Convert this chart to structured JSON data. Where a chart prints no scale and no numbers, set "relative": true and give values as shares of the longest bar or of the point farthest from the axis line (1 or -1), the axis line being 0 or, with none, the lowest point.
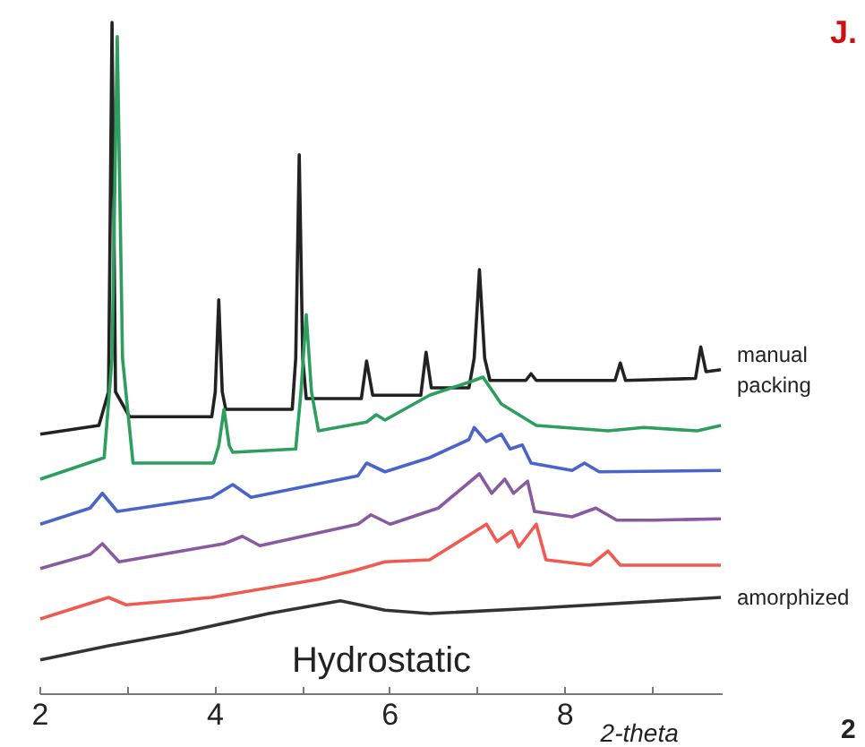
{
  "chart_data": {
    "type": "line",
    "title": "Hydrostatic",
    "xlabel": "2-theta",
    "relative": true,
    "xlim": [
      2,
      9.8
    ],
    "xticks": [
      2,
      {
        "value": 3,
        "label": null
      },
      4,
      {
        "value": 5,
        "label": null
      },
      6,
      {
        "value": 7,
        "label": null
      },
      8,
      {
        "value": 9,
        "label": null
      }
    ],
    "annotations": [
      "J.",
      "2"
    ],
    "grid": false,
    "marker": "none",
    "line_style": "solid",
    "series": [
      {
        "name": "manual packing",
        "color": "#222222",
        "x": [
          2,
          2.67,
          2.78,
          2.82,
          2.86,
          3.02,
          3.96,
          4.0,
          4.04,
          4.08,
          4.12,
          4.88,
          4.92,
          4.96,
          5.0,
          5.04,
          5.67,
          5.73,
          5.8,
          6.35,
          6.41,
          6.47,
          6.9,
          6.96,
          7.02,
          7.08,
          7.14,
          7.55,
          7.61,
          7.67,
          8.57,
          8.63,
          8.69,
          9.49,
          9.55,
          9.61,
          9.78
        ],
        "values": [
          0.387,
          0.4,
          0.45,
          1.0,
          0.45,
          0.413,
          0.413,
          0.45,
          0.587,
          0.45,
          0.424,
          0.424,
          0.5,
          0.803,
          0.5,
          0.44,
          0.44,
          0.496,
          0.445,
          0.445,
          0.509,
          0.456,
          0.456,
          0.5,
          0.632,
          0.5,
          0.467,
          0.467,
          0.477,
          0.467,
          0.467,
          0.493,
          0.467,
          0.47,
          0.517,
          0.48,
          0.483
        ]
      },
      {
        "color": "#2e9e5e",
        "x": [
          2,
          2.73,
          2.82,
          2.88,
          2.94,
          3.06,
          3.98,
          4.04,
          4.1,
          4.16,
          4.2,
          4.92,
          4.98,
          5.04,
          5.1,
          5.18,
          5.73,
          5.84,
          5.94,
          6.45,
          6.96,
          7.06,
          7.27,
          7.67,
          8.49,
          8.9,
          9.51,
          9.78
        ],
        "values": [
          0.32,
          0.352,
          0.5,
          0.979,
          0.5,
          0.344,
          0.344,
          0.37,
          0.424,
          0.37,
          0.36,
          0.365,
          0.45,
          0.565,
          0.45,
          0.392,
          0.405,
          0.416,
          0.408,
          0.445,
          0.467,
          0.472,
          0.432,
          0.4,
          0.392,
          0.397,
          0.392,
          0.4
        ]
      },
      {
        "color": "#4a64c8",
        "x": [
          2,
          2.57,
          2.71,
          2.88,
          3.96,
          4.2,
          4.41,
          5.63,
          5.73,
          5.94,
          6.45,
          6.9,
          6.96,
          7.1,
          7.27,
          7.37,
          7.51,
          7.61,
          8.08,
          8.22,
          8.39,
          9.78
        ],
        "values": [
          0.253,
          0.277,
          0.299,
          0.272,
          0.293,
          0.312,
          0.293,
          0.325,
          0.344,
          0.331,
          0.352,
          0.379,
          0.397,
          0.376,
          0.387,
          0.365,
          0.371,
          0.344,
          0.333,
          0.344,
          0.331,
          0.333
        ]
      },
      {
        "color": "#8a5aa0",
        "x": [
          2,
          2.57,
          2.71,
          2.9,
          4.1,
          4.31,
          4.51,
          5.63,
          5.78,
          6.0,
          6.55,
          7.02,
          7.16,
          7.31,
          7.41,
          7.57,
          7.65,
          8.08,
          8.35,
          8.59,
          9.0,
          9.78
        ],
        "values": [
          0.187,
          0.208,
          0.224,
          0.197,
          0.224,
          0.235,
          0.221,
          0.253,
          0.267,
          0.253,
          0.277,
          0.328,
          0.299,
          0.32,
          0.299,
          0.317,
          0.272,
          0.264,
          0.277,
          0.259,
          0.259,
          0.261
        ]
      },
      {
        "color": "#f05a50",
        "x": [
          2,
          2.78,
          2.98,
          3.96,
          5.18,
          5.59,
          5.94,
          6.45,
          7.1,
          7.22,
          7.39,
          7.47,
          7.67,
          7.78,
          8.29,
          8.49,
          8.63,
          9.78
        ],
        "values": [
          0.112,
          0.144,
          0.133,
          0.144,
          0.171,
          0.184,
          0.197,
          0.2,
          0.253,
          0.227,
          0.243,
          0.219,
          0.253,
          0.2,
          0.192,
          0.213,
          0.192,
          0.192
        ]
      },
      {
        "name": "amorphized",
        "color": "#333333",
        "x": [
          2,
          2.78,
          3.59,
          4.61,
          5.43,
          5.94,
          6.45,
          7.67,
          9.78
        ],
        "values": [
          0.051,
          0.072,
          0.091,
          0.12,
          0.139,
          0.125,
          0.12,
          0.128,
          0.144
        ]
      }
    ]
  }
}
